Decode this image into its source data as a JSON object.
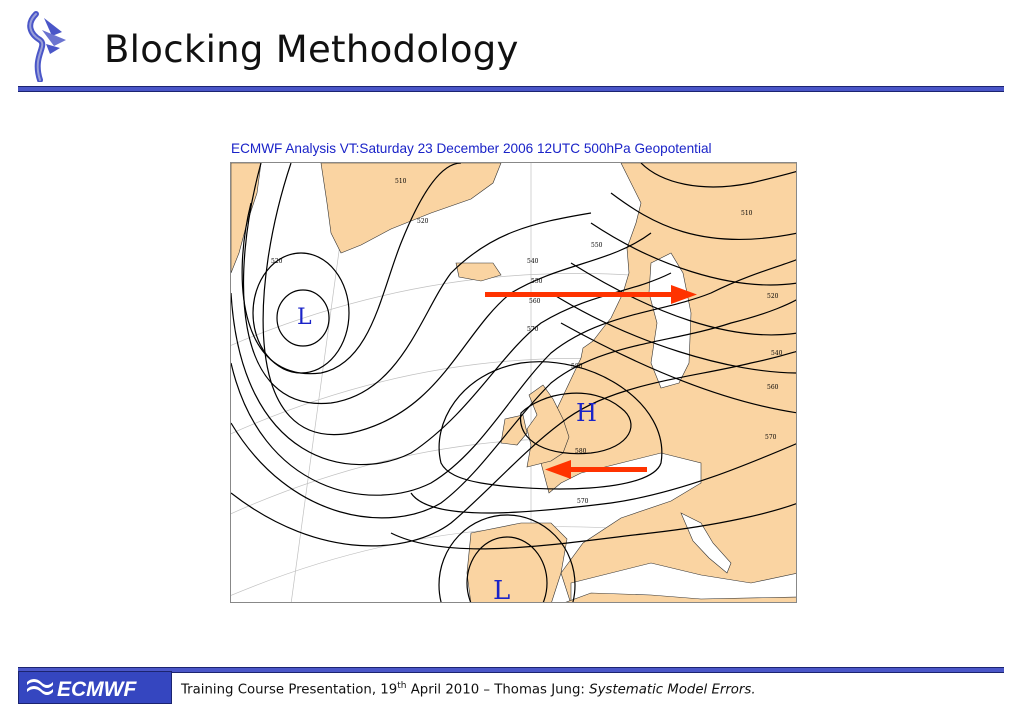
{
  "slide": {
    "title": "Blocking Methodology"
  },
  "map": {
    "title": "ECMWF  Analysis VT:Saturday 23 December 2006 12UTC 500hPa Geopotential",
    "labels": {
      "low_nw": "L",
      "high": "H",
      "low_sw": "L"
    },
    "contour_values": [
      "510",
      "520",
      "530",
      "540",
      "550",
      "560",
      "570",
      "580"
    ],
    "colors": {
      "land": "#fad4a2",
      "sea": "#ffffff",
      "contour": "#000000",
      "arrow": "#ff3300",
      "label": "#1a23c8"
    },
    "arrows": [
      {
        "direction": "east"
      },
      {
        "direction": "west"
      }
    ]
  },
  "footer": {
    "brand": "ECMWF",
    "text_before_sup": "Training Course Presentation, 19",
    "sup": "th",
    "text_after_sup": " April 2010 – Thomas Jung: ",
    "text_italic": "Systematic Model Errors."
  }
}
